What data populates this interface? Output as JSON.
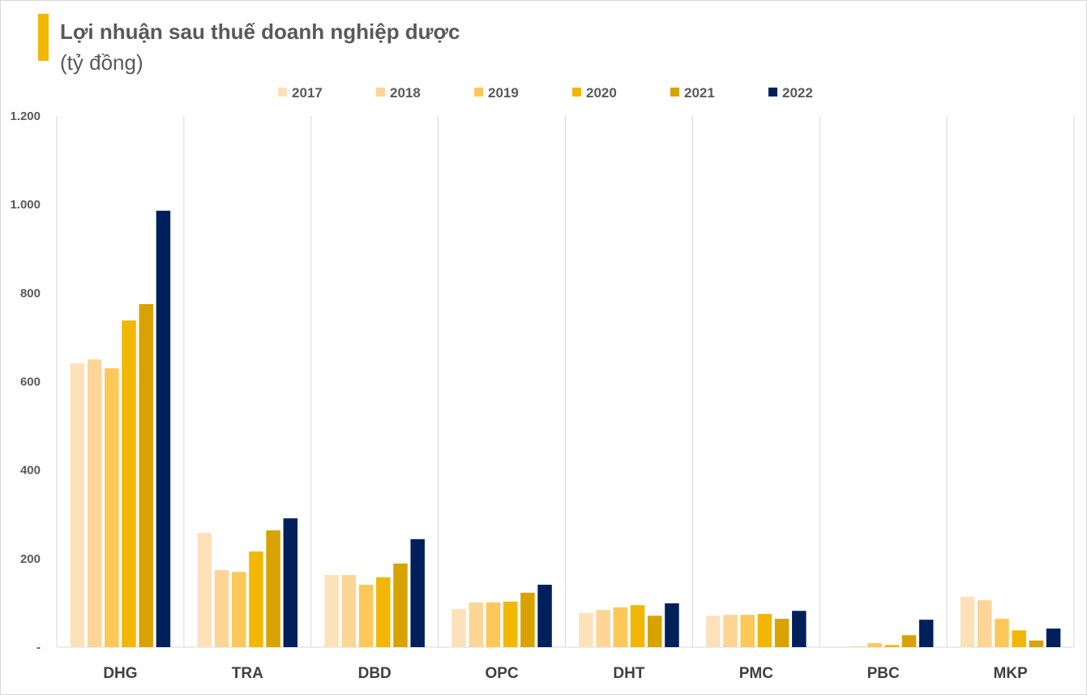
{
  "chart_data": {
    "type": "bar",
    "title": "Lợi nhuận sau thuế doanh nghiệp dược",
    "subtitle": "(tỷ đồng)",
    "categories": [
      "DHG",
      "TRA",
      "DBD",
      "OPC",
      "DHT",
      "PMC",
      "PBC",
      "MKP"
    ],
    "series": [
      {
        "name": "2017",
        "color": "#FDE1BB",
        "values": [
          641,
          258,
          163,
          86,
          77,
          71,
          0,
          114
        ]
      },
      {
        "name": "2018",
        "color": "#FDD596",
        "values": [
          650,
          174,
          163,
          101,
          84,
          73,
          2,
          106
        ]
      },
      {
        "name": "2019",
        "color": "#FDC75A",
        "values": [
          630,
          170,
          141,
          101,
          90,
          73,
          9,
          64
        ]
      },
      {
        "name": "2020",
        "color": "#F2B705",
        "values": [
          738,
          216,
          158,
          103,
          95,
          75,
          5,
          38
        ]
      },
      {
        "name": "2021",
        "color": "#D8A300",
        "values": [
          775,
          264,
          189,
          123,
          71,
          64,
          27,
          15
        ]
      },
      {
        "name": "2022",
        "color": "#00205C",
        "values": [
          986,
          291,
          244,
          141,
          99,
          82,
          62,
          42
        ]
      }
    ],
    "ylim": [
      0,
      1200
    ],
    "yticks": [
      0,
      200,
      400,
      600,
      800,
      1000,
      1200
    ],
    "ytick_labels": [
      "-",
      "200",
      "400",
      "600",
      "800",
      "1.000",
      "1.200"
    ],
    "legend_position": "top",
    "grid": false,
    "xlabel": "",
    "ylabel": ""
  }
}
